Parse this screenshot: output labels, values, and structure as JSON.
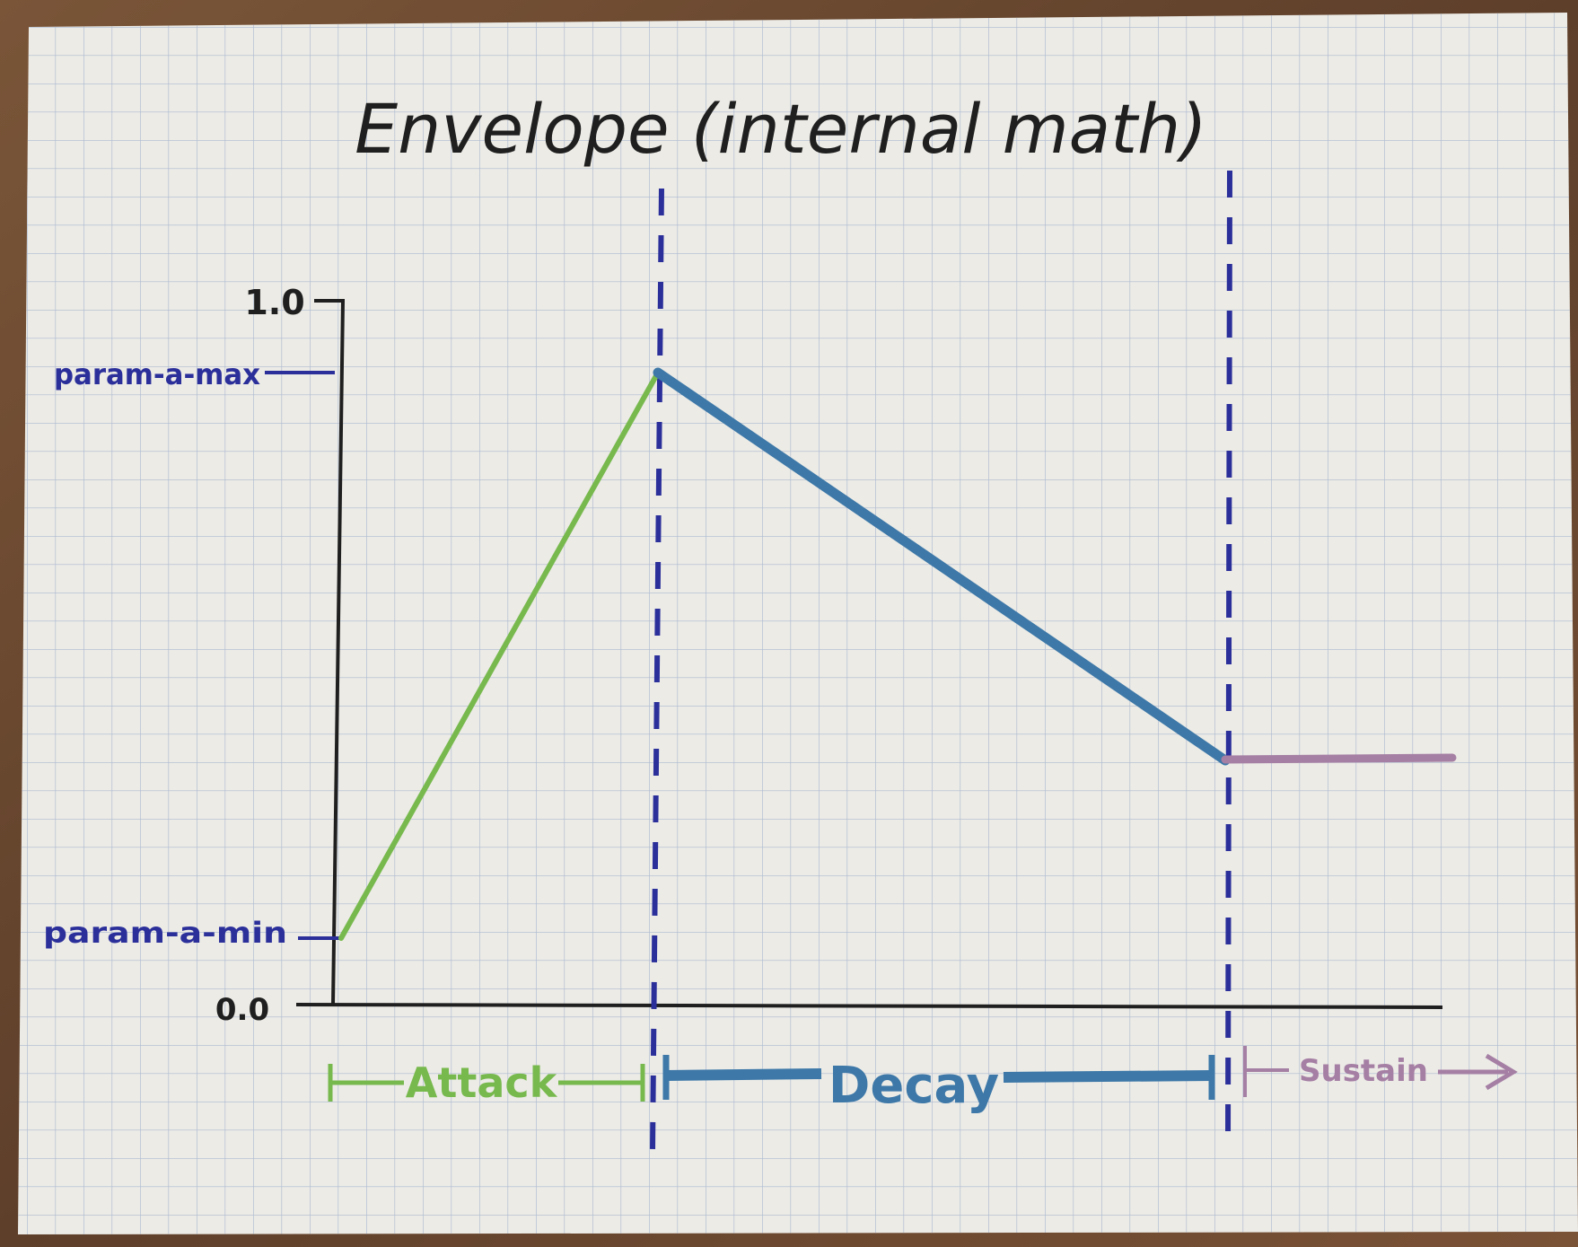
{
  "title": "Envelope (internal math)",
  "axis": {
    "y_top_label": "1.0",
    "y_bottom_label": "0.0"
  },
  "levels": {
    "max_label": "param-a-max",
    "min_label": "param-a-min"
  },
  "phases": {
    "attack": "Attack",
    "decay": "Decay",
    "sustain": "Sustain"
  },
  "colors": {
    "paper": "#ecebe6",
    "grid": "#a9b6cf",
    "ink_black": "#1f1f1f",
    "ink_blue": "#2b2f9a",
    "attack_green": "#78b94e",
    "decay_blue": "#3d78a8",
    "sustain_purple": "#a57fa4",
    "table_wood": "#6b4a33"
  }
}
